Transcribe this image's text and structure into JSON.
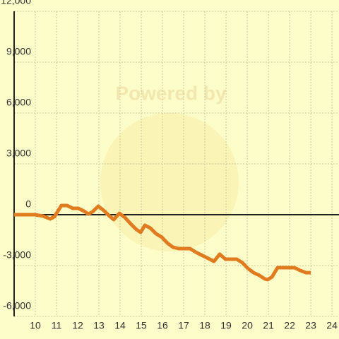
{
  "chart_data": {
    "type": "line",
    "watermark": "Powered by",
    "x": [
      9.0,
      9.97,
      10.37,
      10.7,
      10.9,
      11.23,
      11.5,
      11.77,
      12.03,
      12.3,
      12.5,
      12.7,
      12.97,
      13.23,
      13.5,
      13.7,
      13.97,
      14.23,
      14.5,
      14.77,
      14.97,
      15.17,
      15.43,
      15.7,
      15.97,
      16.23,
      16.5,
      16.77,
      17.03,
      17.3,
      17.57,
      17.83,
      18.1,
      18.43,
      18.7,
      18.97,
      19.23,
      19.5,
      19.77,
      20.03,
      20.3,
      20.57,
      20.83,
      20.97,
      21.17,
      21.43,
      21.7,
      21.97,
      22.23,
      22.5,
      22.77,
      23.0
    ],
    "series": [
      {
        "color": "#e07b20",
        "values": [
          0,
          0,
          -80,
          -250,
          -120,
          540,
          540,
          375,
          375,
          210,
          40,
          170,
          500,
          250,
          -80,
          -290,
          80,
          -170,
          -540,
          -875,
          -1040,
          -625,
          -790,
          -1125,
          -1330,
          -1670,
          -1920,
          -2000,
          -2000,
          -2000,
          -2210,
          -2375,
          -2540,
          -2750,
          -2330,
          -2625,
          -2625,
          -2625,
          -2830,
          -3170,
          -3420,
          -3580,
          -3790,
          -3830,
          -3670,
          -3125,
          -3125,
          -3125,
          -3125,
          -3290,
          -3420,
          -3420
        ]
      }
    ],
    "xlim": [
      9,
      24.33
    ],
    "xticks": [
      10,
      11,
      12,
      13,
      14,
      15,
      16,
      17,
      18,
      19,
      20,
      21,
      22,
      23,
      24
    ],
    "ylim": [
      -6000,
      12000
    ],
    "yticks": [
      {
        "value": -6000,
        "label": "-6,000"
      },
      {
        "value": -3000,
        "label": "-3,000"
      },
      0,
      {
        "value": 3000,
        "label": "3,000"
      },
      {
        "value": 6000,
        "label": "6,000"
      },
      {
        "value": 9000,
        "label": "9,000"
      },
      {
        "value": 12000,
        "label": "12,000"
      }
    ],
    "grid": true
  }
}
